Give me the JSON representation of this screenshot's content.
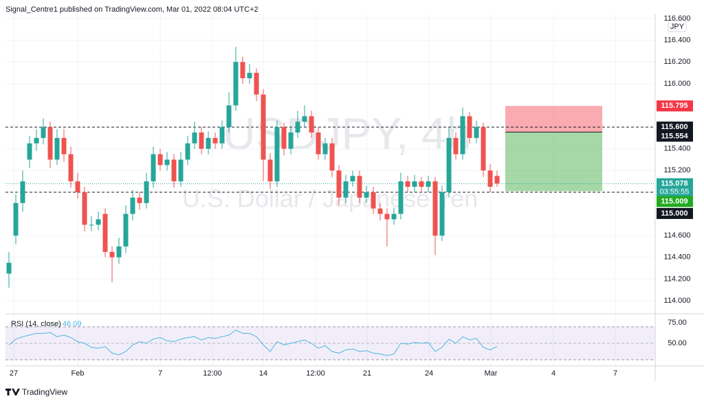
{
  "header": {
    "text": "Signal_Centre1 published on TradingView.com, Mar 01, 2022 08:04 UTC+2"
  },
  "footer": {
    "text": "TradingView"
  },
  "chart_data": {
    "type": "candlestick",
    "watermark": {
      "symbol": "USDJPY, 4h",
      "description": "U.S. Dollar / Japanese Yen"
    },
    "currency": "JPY",
    "up_color": "#26a69a",
    "down_color": "#ef5350",
    "x": [
      0,
      1,
      2,
      3,
      4,
      5,
      6,
      7,
      8,
      9,
      10,
      11,
      12,
      13,
      14,
      15,
      16,
      17,
      18,
      19,
      20,
      21,
      22,
      23,
      24,
      25,
      26,
      27,
      28,
      29,
      30,
      31,
      32,
      33,
      34,
      35,
      36,
      37,
      38,
      39,
      40,
      41,
      42,
      43,
      44,
      45,
      46,
      47,
      48,
      49,
      50,
      51,
      52,
      53,
      54,
      55,
      56,
      57,
      58,
      59,
      60,
      61,
      62,
      63,
      64,
      65,
      66,
      67,
      68,
      69,
      70,
      71
    ],
    "open": [
      114.25,
      114.6,
      114.9,
      115.3,
      115.45,
      115.5,
      115.6,
      115.3,
      115.5,
      115.35,
      115.1,
      115.0,
      114.7,
      114.7,
      114.8,
      114.45,
      114.4,
      114.5,
      114.8,
      114.95,
      114.9,
      115.1,
      115.35,
      115.25,
      115.3,
      115.1,
      115.3,
      115.45,
      115.55,
      115.4,
      115.5,
      115.45,
      115.6,
      115.8,
      116.2,
      116.05,
      116.1,
      115.9,
      115.3,
      115.1,
      115.6,
      115.4,
      115.55,
      115.65,
      115.7,
      115.55,
      115.35,
      115.45,
      115.2,
      114.95,
      115.1,
      115.15,
      114.95,
      115.0,
      114.85,
      114.8,
      114.75,
      114.8,
      115.1,
      115.05,
      115.1,
      115.05,
      115.1,
      114.6,
      115.0,
      115.5,
      115.35,
      115.7,
      115.5,
      115.6,
      115.2,
      115.15
    ],
    "high": [
      114.45,
      114.98,
      115.2,
      115.52,
      115.58,
      115.68,
      115.65,
      115.58,
      115.58,
      115.42,
      115.18,
      115.05,
      114.78,
      114.82,
      114.85,
      114.5,
      114.58,
      114.88,
      115.02,
      115.0,
      115.18,
      115.42,
      115.4,
      115.37,
      115.35,
      115.37,
      115.52,
      115.65,
      115.6,
      115.56,
      115.55,
      115.66,
      115.92,
      116.34,
      116.25,
      116.18,
      116.14,
      115.95,
      115.36,
      115.66,
      115.64,
      115.6,
      115.75,
      115.8,
      115.75,
      115.6,
      115.5,
      115.5,
      115.25,
      115.16,
      115.2,
      115.2,
      115.06,
      115.05,
      114.9,
      114.85,
      114.86,
      115.18,
      115.15,
      115.16,
      115.14,
      115.15,
      115.14,
      115.06,
      115.6,
      115.55,
      115.78,
      115.74,
      115.66,
      115.64,
      115.26,
      115.2
    ],
    "low": [
      114.12,
      114.52,
      114.82,
      115.22,
      115.38,
      115.44,
      115.22,
      115.25,
      115.28,
      115.04,
      114.94,
      114.64,
      114.64,
      114.65,
      114.4,
      114.17,
      114.34,
      114.44,
      114.74,
      114.84,
      114.85,
      115.04,
      115.2,
      115.2,
      115.04,
      115.05,
      115.25,
      115.4,
      115.35,
      115.35,
      115.4,
      115.4,
      115.55,
      115.75,
      116.0,
      116.0,
      115.84,
      115.1,
      115.03,
      115.05,
      115.34,
      115.35,
      115.5,
      115.6,
      115.5,
      115.3,
      115.3,
      115.14,
      114.88,
      114.9,
      115.05,
      114.9,
      114.9,
      114.8,
      114.74,
      114.5,
      114.7,
      114.75,
      115.0,
      115.0,
      115.0,
      115.0,
      114.42,
      114.55,
      114.95,
      115.3,
      115.3,
      115.45,
      115.45,
      115.14,
      115.0,
      115.05
    ],
    "close": [
      114.35,
      114.9,
      115.1,
      115.45,
      115.5,
      115.6,
      115.3,
      115.5,
      115.35,
      115.1,
      115.0,
      114.7,
      114.7,
      114.75,
      114.45,
      114.4,
      114.5,
      114.8,
      114.95,
      114.9,
      115.1,
      115.35,
      115.25,
      115.3,
      115.1,
      115.3,
      115.45,
      115.55,
      115.4,
      115.5,
      115.45,
      115.6,
      115.8,
      116.2,
      116.05,
      116.1,
      115.9,
      115.3,
      115.1,
      115.6,
      115.4,
      115.55,
      115.65,
      115.7,
      115.55,
      115.35,
      115.45,
      115.2,
      114.95,
      115.1,
      115.15,
      114.95,
      115.0,
      114.85,
      114.8,
      114.75,
      114.8,
      115.1,
      115.05,
      115.1,
      115.05,
      115.1,
      114.6,
      115.0,
      115.5,
      115.35,
      115.7,
      115.5,
      115.6,
      115.2,
      115.05,
      115.08
    ],
    "xlim": [
      -0.5,
      94
    ],
    "xticks": [
      {
        "value": 0.7,
        "label": "27"
      },
      {
        "value": 10,
        "label": "Feb"
      },
      {
        "value": 22,
        "label": "7"
      },
      {
        "value": 29.6,
        "label": "12:00"
      },
      {
        "value": 37,
        "label": "14"
      },
      {
        "value": 44.6,
        "label": "12:00"
      },
      {
        "value": 52.1,
        "label": "21"
      },
      {
        "value": 61.1,
        "label": "24"
      },
      {
        "value": 70.1,
        "label": "Mar"
      },
      {
        "value": 79.2,
        "label": "4"
      },
      {
        "value": 88.2,
        "label": "7"
      }
    ],
    "ylim": [
      113.88,
      116.676
    ],
    "yticks": [
      {
        "value": 114.0,
        "label": "114.000"
      },
      {
        "value": 114.2,
        "label": "114.200"
      },
      {
        "value": 114.4,
        "label": "114.400"
      },
      {
        "value": 114.6,
        "label": "114.600"
      },
      {
        "value": 115.2,
        "label": "115.200"
      },
      {
        "value": 115.4,
        "label": "115.400"
      },
      {
        "value": 116.0,
        "label": "116.000"
      },
      {
        "value": 116.2,
        "label": "116.200"
      },
      {
        "value": 116.4,
        "label": "116.400"
      },
      {
        "value": 116.6,
        "label": "116.600"
      }
    ],
    "grid": true,
    "price_lines": [
      {
        "value": 115.6,
        "label": "115.600"
      },
      {
        "value": 115.0,
        "label": "115.000"
      }
    ],
    "position": {
      "x_range": [
        72.2,
        86.3
      ],
      "stop": {
        "value": 115.795,
        "label": "115.795"
      },
      "entry": {
        "value": 115.554,
        "label": "115.554"
      },
      "target": {
        "value": 115.009,
        "label": "115.009"
      }
    },
    "last_price": {
      "value": 115.078,
      "label": "115.078",
      "countdown": "03:55:55"
    },
    "rsi": {
      "name": "RSI (14, close)",
      "color": "#4ab5e0",
      "last_label": "46.09",
      "values": [
        48,
        55,
        58,
        60,
        62,
        62,
        63,
        58,
        60,
        57,
        52,
        50,
        45,
        44,
        46,
        38,
        36,
        40,
        48,
        52,
        50,
        55,
        57,
        53,
        52,
        55,
        57,
        58,
        54,
        57,
        56,
        58,
        60,
        66,
        62,
        62,
        58,
        48,
        40,
        52,
        48,
        50,
        52,
        54,
        50,
        44,
        47,
        40,
        38,
        42,
        43,
        40,
        41,
        38,
        37,
        35,
        37,
        50,
        49,
        51,
        50,
        51,
        40,
        45,
        55,
        50,
        58,
        54,
        56,
        45,
        42,
        46.09
      ],
      "band": [
        30,
        70
      ],
      "mid": 50,
      "y2lim": [
        22.5,
        81.7
      ],
      "y2ticks": [
        {
          "value": 50,
          "label": "50.00"
        },
        {
          "value": 75,
          "label": "75.00"
        }
      ]
    }
  }
}
